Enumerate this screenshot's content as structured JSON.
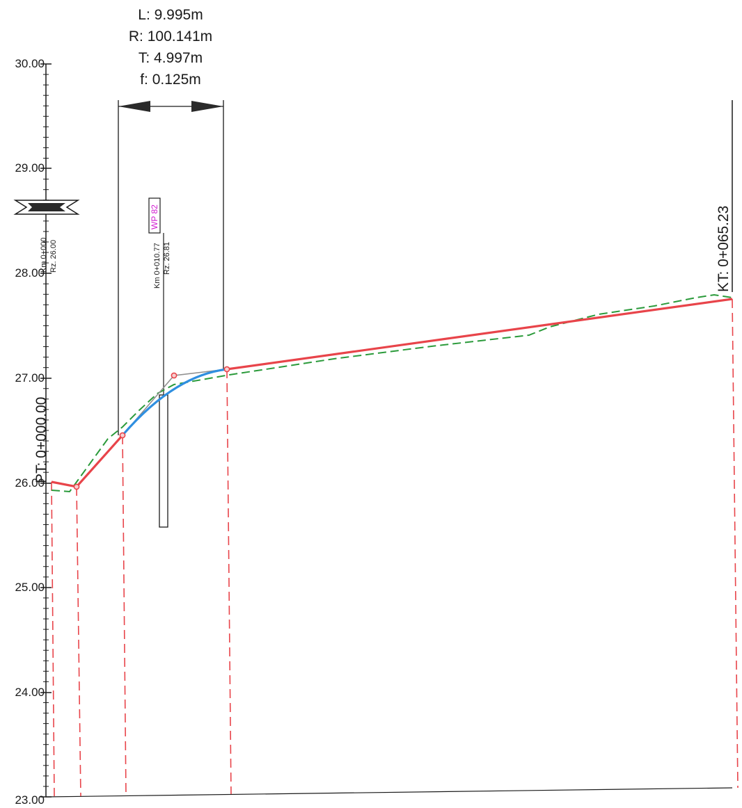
{
  "curve_params": {
    "length": "L: 9.995m",
    "radius": "R: 100.141m",
    "tangent": "T: 4.997m",
    "sag": "f: 0.125m"
  },
  "y_axis_labels": [
    "30.00",
    "29.00",
    "28.00",
    "27.00",
    "26.00",
    "25.00",
    "24.00",
    "23.00"
  ],
  "start_station": "PT: 0+000.00",
  "end_station": "KT: 0+065.23",
  "benchmark": {
    "km": "Km 0+000",
    "rz": "Rz. 26.00"
  },
  "well": {
    "tag": "WP 82",
    "km": "Km 0+010.77",
    "rz": "Rz. 26.81"
  },
  "colors": {
    "design_line": "#e8444a",
    "terrain_line": "#2a9a3a",
    "vertical_curve": "#2f8fe0",
    "tangent_line": "#909090",
    "ink": "#1a1a1a",
    "well_tag": "#d01ad0"
  }
}
